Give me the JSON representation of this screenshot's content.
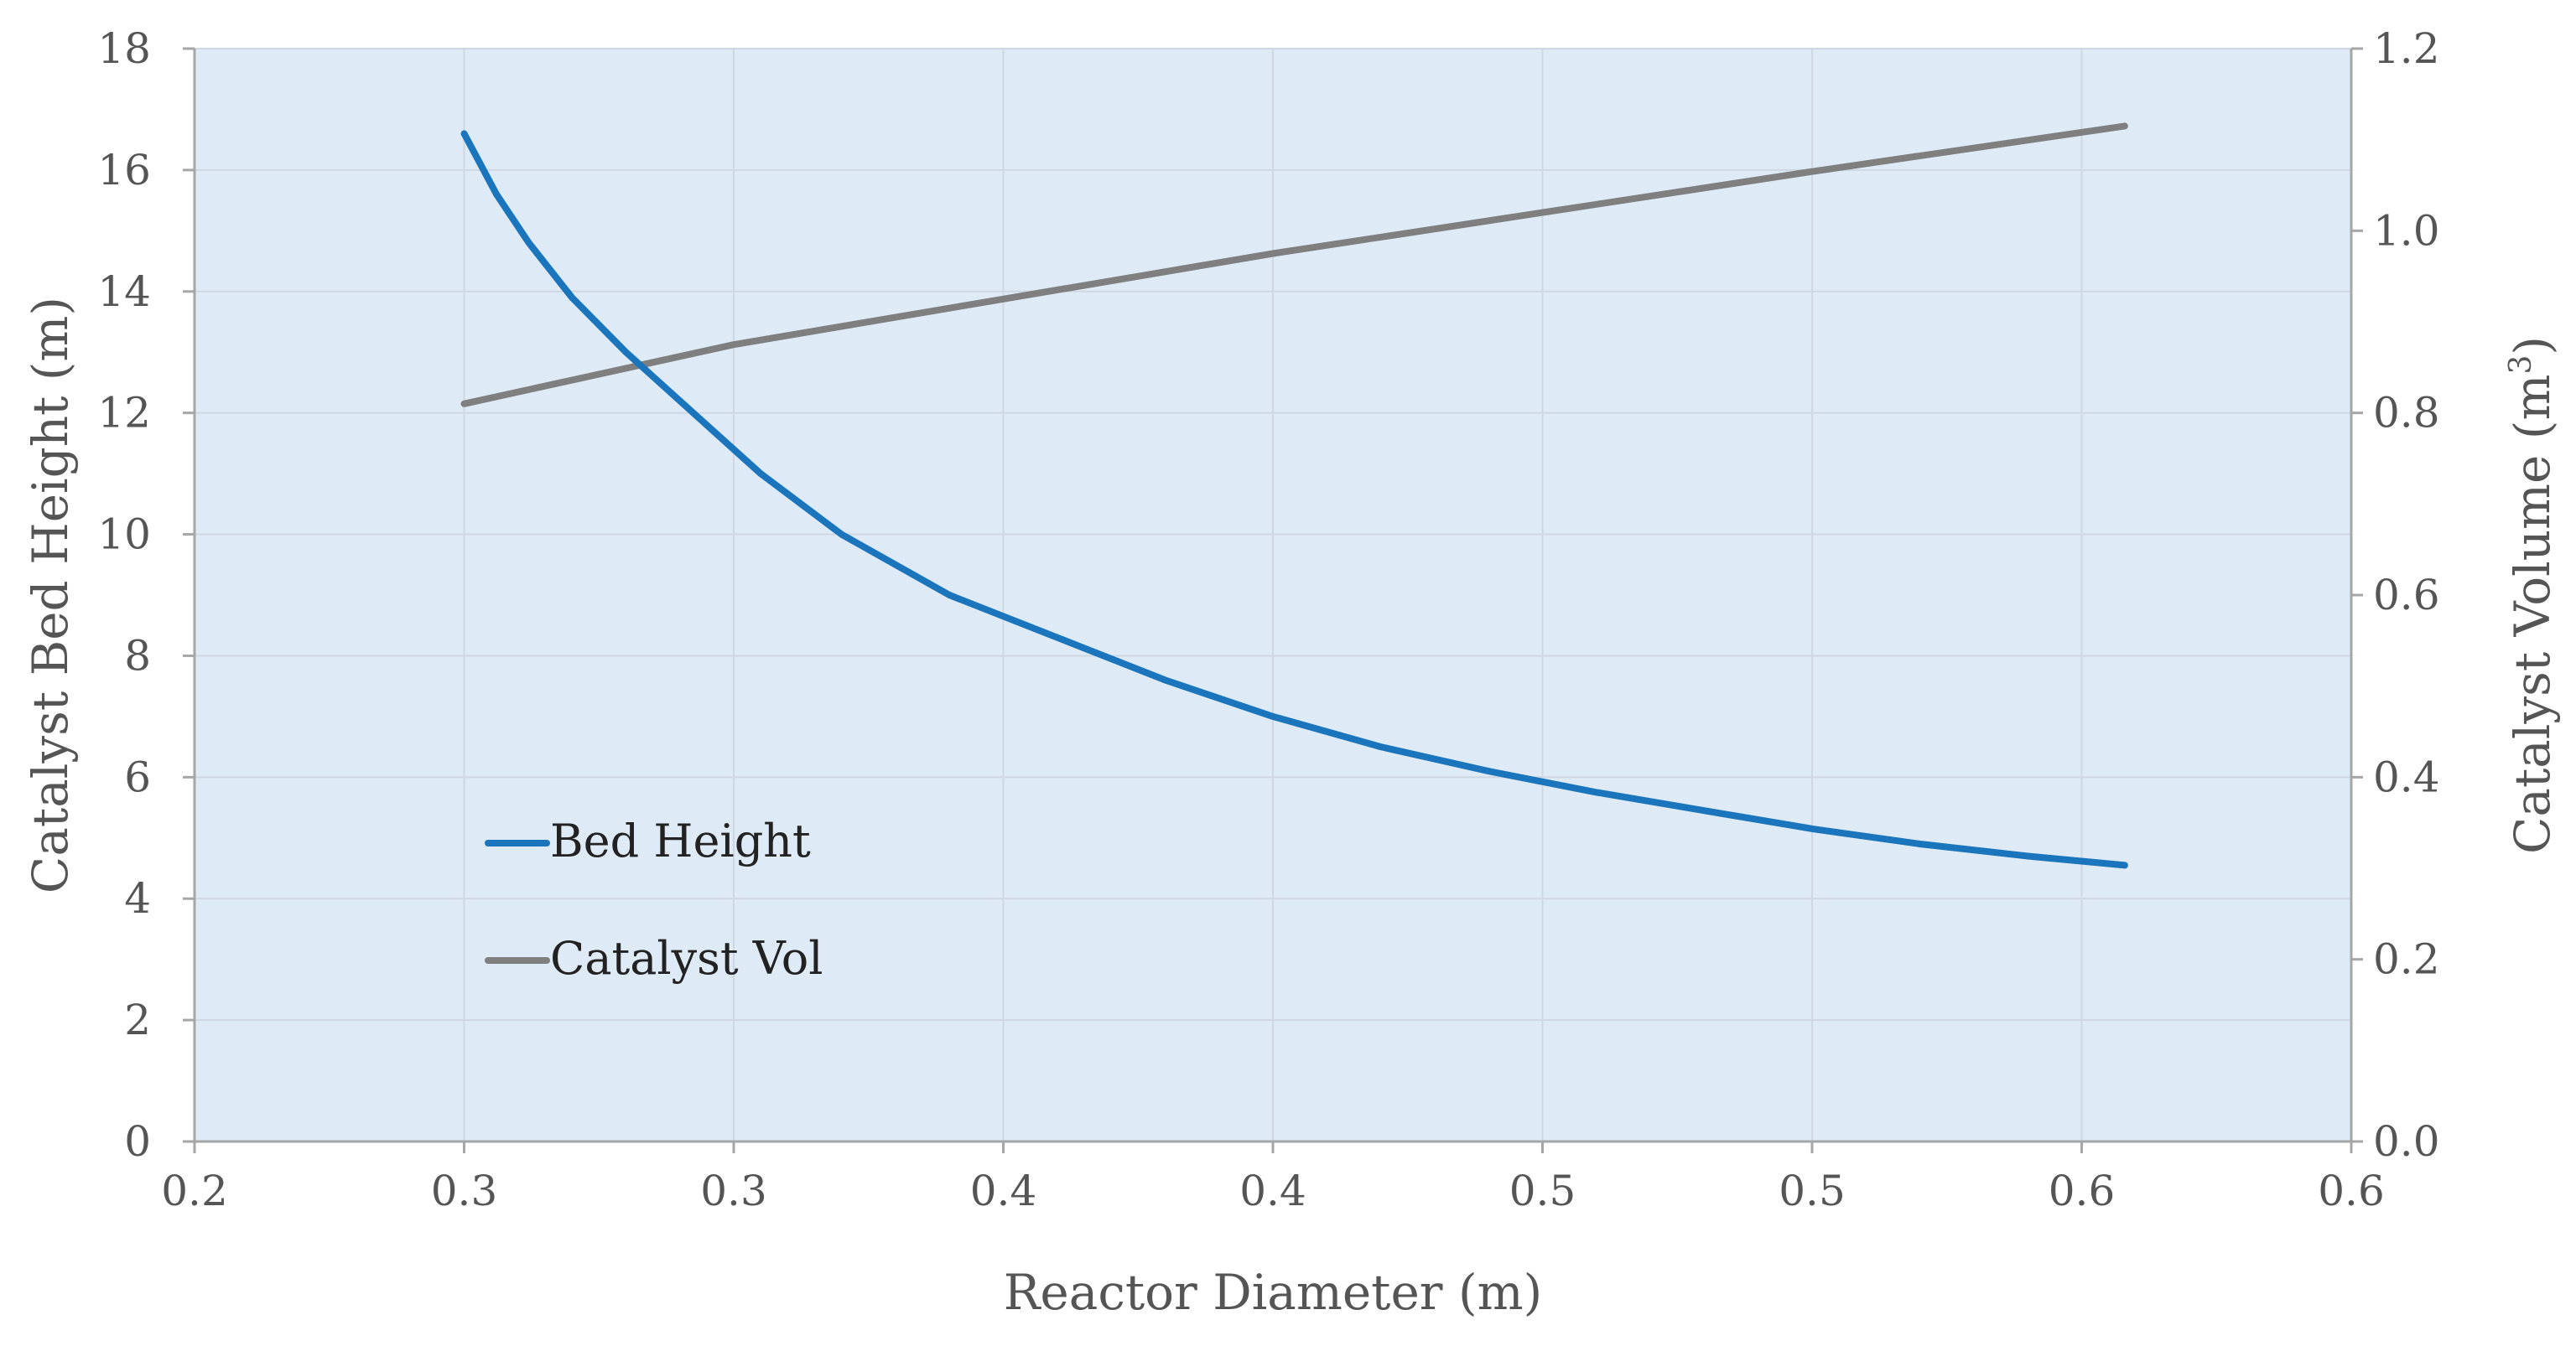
{
  "chart_data": {
    "type": "line",
    "title": "",
    "xlabel": "Reactor Diameter (m)",
    "ylabel": "Catalyst Bed Height (m)",
    "y2label": {
      "main": "Catalyst Volume (m",
      "sup": "3",
      "close": ")"
    },
    "xlim": [
      0.2,
      0.6
    ],
    "ylim": [
      0,
      18
    ],
    "y2lim": [
      0,
      1.2
    ],
    "x_ticks": [
      0.2,
      0.25,
      0.3,
      0.35,
      0.4,
      0.45,
      0.5,
      0.55,
      0.6
    ],
    "x_tick_labels": [
      "0.2",
      "0.3",
      "0.3",
      "0.4",
      "0.4",
      "0.5",
      "0.5",
      "0.6",
      "0.6"
    ],
    "y_ticks": [
      0,
      2,
      4,
      6,
      8,
      10,
      12,
      14,
      16,
      18
    ],
    "y_tick_labels": [
      "0",
      "2",
      "4",
      "6",
      "8",
      "10",
      "12",
      "14",
      "16",
      "18"
    ],
    "y2_ticks": [
      0,
      0.2,
      0.4,
      0.6,
      0.8,
      1.0,
      1.2
    ],
    "y2_tick_labels": [
      "0.0",
      "0.2",
      "0.4",
      "0.6",
      "0.8",
      "1.0",
      "1.2"
    ],
    "grid": true,
    "plot_background": "#deeaf6",
    "legend_position": "lower-left",
    "series": [
      {
        "name": "Bed Height",
        "axis": "left",
        "color": "#1b75bc",
        "x": [
          0.25,
          0.256,
          0.262,
          0.27,
          0.28,
          0.29,
          0.305,
          0.32,
          0.34,
          0.36,
          0.38,
          0.4,
          0.42,
          0.44,
          0.46,
          0.48,
          0.5,
          0.52,
          0.54,
          0.558
        ],
        "y": [
          16.6,
          15.6,
          14.8,
          13.9,
          13.0,
          12.2,
          11.0,
          10.0,
          9.0,
          8.3,
          7.6,
          7.0,
          6.5,
          6.1,
          5.75,
          5.45,
          5.15,
          4.9,
          4.7,
          4.55
        ]
      },
      {
        "name": "Catalyst Vol",
        "axis": "right",
        "color": "#7f7f7f",
        "x": [
          0.25,
          0.3,
          0.35,
          0.4,
          0.45,
          0.5,
          0.558
        ],
        "y": [
          0.81,
          0.875,
          0.925,
          0.975,
          1.02,
          1.065,
          1.115
        ]
      }
    ]
  }
}
